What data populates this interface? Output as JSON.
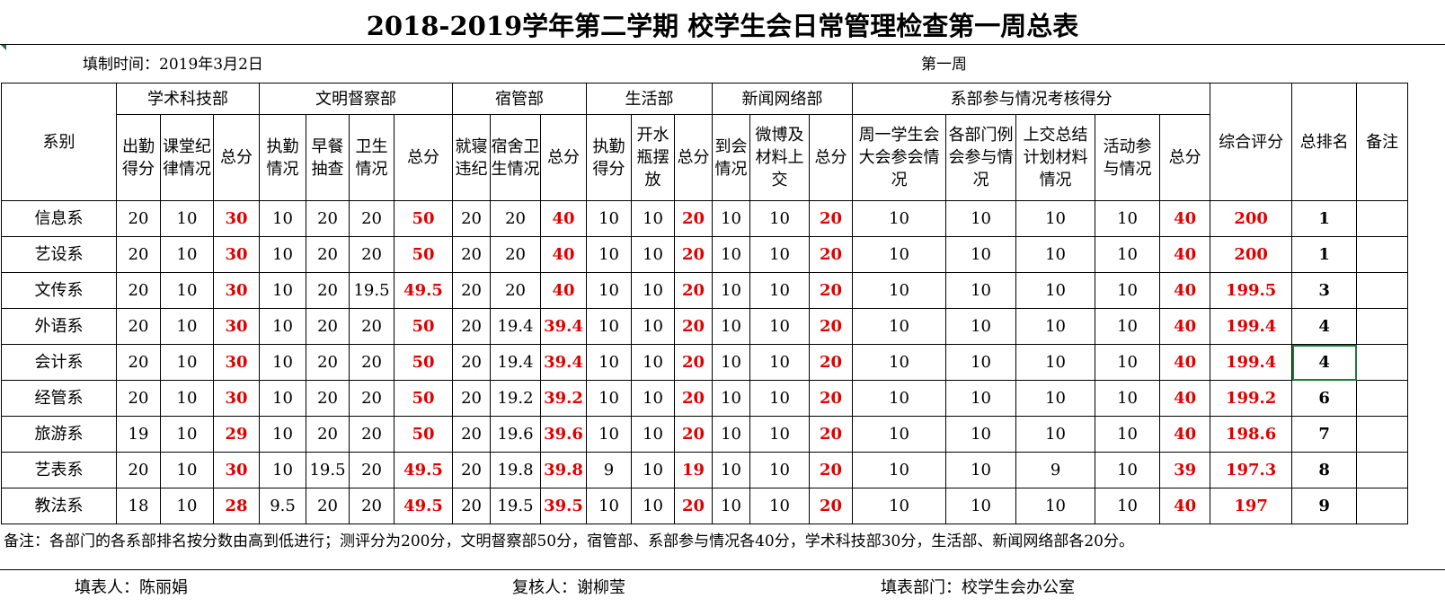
{
  "title": "2018-2019学年第二学期 校学生会日常管理检查第一周总表",
  "fill_time": "填制时间：2019年3月2日",
  "week": "第一周",
  "headers": {
    "dept_col": "系别",
    "academic": "学术科技部",
    "academic_sub": [
      "出勤得分",
      "课堂纪律情况",
      "总分"
    ],
    "civil": "文明督察部",
    "civil_sub": [
      "执勤情况",
      "早餐抽查",
      "卫生情况",
      "总分"
    ],
    "dorm": "宿管部",
    "dorm_sub": [
      "就寝违纪",
      "宿舍卫生情况",
      "总分"
    ],
    "life": "生活部",
    "life_sub": [
      "执勤得分",
      "开水瓶摆放",
      "总分"
    ],
    "news": "新闻网络部",
    "news_sub": [
      "到会情况",
      "微博及材料上交",
      "总分"
    ],
    "participation": "系部参与情况考核得分",
    "participation_sub": [
      "周一学生会大会参会情况",
      "各部门例会参与情况",
      "上交总结计划材料情况",
      "活动参与情况",
      "总分"
    ],
    "composite": "综合评分",
    "rank": "总排名",
    "remark": "备注"
  },
  "rows": [
    {
      "dept": "信息系",
      "a": [
        "20",
        "10",
        "30"
      ],
      "c": [
        "10",
        "20",
        "20",
        "50"
      ],
      "d": [
        "20",
        "20",
        "40"
      ],
      "l": [
        "10",
        "10",
        "20"
      ],
      "n": [
        "10",
        "10",
        "20"
      ],
      "p": [
        "10",
        "10",
        "10",
        "10",
        "40"
      ],
      "score": "200",
      "rank": "1"
    },
    {
      "dept": "艺设系",
      "a": [
        "20",
        "10",
        "30"
      ],
      "c": [
        "10",
        "20",
        "20",
        "50"
      ],
      "d": [
        "20",
        "20",
        "40"
      ],
      "l": [
        "10",
        "10",
        "20"
      ],
      "n": [
        "10",
        "10",
        "20"
      ],
      "p": [
        "10",
        "10",
        "10",
        "10",
        "40"
      ],
      "score": "200",
      "rank": "1"
    },
    {
      "dept": "文传系",
      "a": [
        "20",
        "10",
        "30"
      ],
      "c": [
        "10",
        "20",
        "19.5",
        "49.5"
      ],
      "d": [
        "20",
        "20",
        "40"
      ],
      "l": [
        "10",
        "10",
        "20"
      ],
      "n": [
        "10",
        "10",
        "20"
      ],
      "p": [
        "10",
        "10",
        "10",
        "10",
        "40"
      ],
      "score": "199.5",
      "rank": "3"
    },
    {
      "dept": "外语系",
      "a": [
        "20",
        "10",
        "30"
      ],
      "c": [
        "10",
        "20",
        "20",
        "50"
      ],
      "d": [
        "20",
        "19.4",
        "39.4"
      ],
      "l": [
        "10",
        "10",
        "20"
      ],
      "n": [
        "10",
        "10",
        "20"
      ],
      "p": [
        "10",
        "10",
        "10",
        "10",
        "40"
      ],
      "score": "199.4",
      "rank": "4"
    },
    {
      "dept": "会计系",
      "a": [
        "20",
        "10",
        "30"
      ],
      "c": [
        "10",
        "20",
        "20",
        "50"
      ],
      "d": [
        "20",
        "19.4",
        "39.4"
      ],
      "l": [
        "10",
        "10",
        "20"
      ],
      "n": [
        "10",
        "10",
        "20"
      ],
      "p": [
        "10",
        "10",
        "10",
        "10",
        "40"
      ],
      "score": "199.4",
      "rank": "4"
    },
    {
      "dept": "经管系",
      "a": [
        "20",
        "10",
        "30"
      ],
      "c": [
        "10",
        "20",
        "20",
        "50"
      ],
      "d": [
        "20",
        "19.2",
        "39.2"
      ],
      "l": [
        "10",
        "10",
        "20"
      ],
      "n": [
        "10",
        "10",
        "20"
      ],
      "p": [
        "10",
        "10",
        "10",
        "10",
        "40"
      ],
      "score": "199.2",
      "rank": "6"
    },
    {
      "dept": "旅游系",
      "a": [
        "19",
        "10",
        "29"
      ],
      "c": [
        "10",
        "20",
        "20",
        "50"
      ],
      "d": [
        "20",
        "19.6",
        "39.6"
      ],
      "l": [
        "10",
        "10",
        "20"
      ],
      "n": [
        "10",
        "10",
        "20"
      ],
      "p": [
        "10",
        "10",
        "10",
        "10",
        "40"
      ],
      "score": "198.6",
      "rank": "7"
    },
    {
      "dept": "艺表系",
      "a": [
        "20",
        "10",
        "30"
      ],
      "c": [
        "10",
        "19.5",
        "20",
        "49.5"
      ],
      "d": [
        "20",
        "19.8",
        "39.8"
      ],
      "l": [
        "9",
        "10",
        "19"
      ],
      "n": [
        "10",
        "10",
        "20"
      ],
      "p": [
        "10",
        "10",
        "9",
        "10",
        "39"
      ],
      "score": "197.3",
      "rank": "8"
    },
    {
      "dept": "教法系",
      "a": [
        "18",
        "10",
        "28"
      ],
      "c": [
        "9.5",
        "20",
        "20",
        "49.5"
      ],
      "d": [
        "20",
        "19.5",
        "39.5"
      ],
      "l": [
        "10",
        "10",
        "20"
      ],
      "n": [
        "10",
        "10",
        "20"
      ],
      "p": [
        "10",
        "10",
        "10",
        "10",
        "40"
      ],
      "score": "197",
      "rank": "9"
    }
  ],
  "note": "备注：各部门的各系部排名按分数由高到低进行；测评分为200分，文明督察部50分，宿管部、系部参与情况各40分，学术科技部30分，生活部、新闻网络部各20分。",
  "footer": {
    "filler": "填表人：陈丽娟",
    "reviewer": "复核人：谢柳莹",
    "department": "填表部门：校学生会办公室"
  },
  "colors": {
    "total_red": "#e00000",
    "selection_green": "#1e7a3a"
  }
}
